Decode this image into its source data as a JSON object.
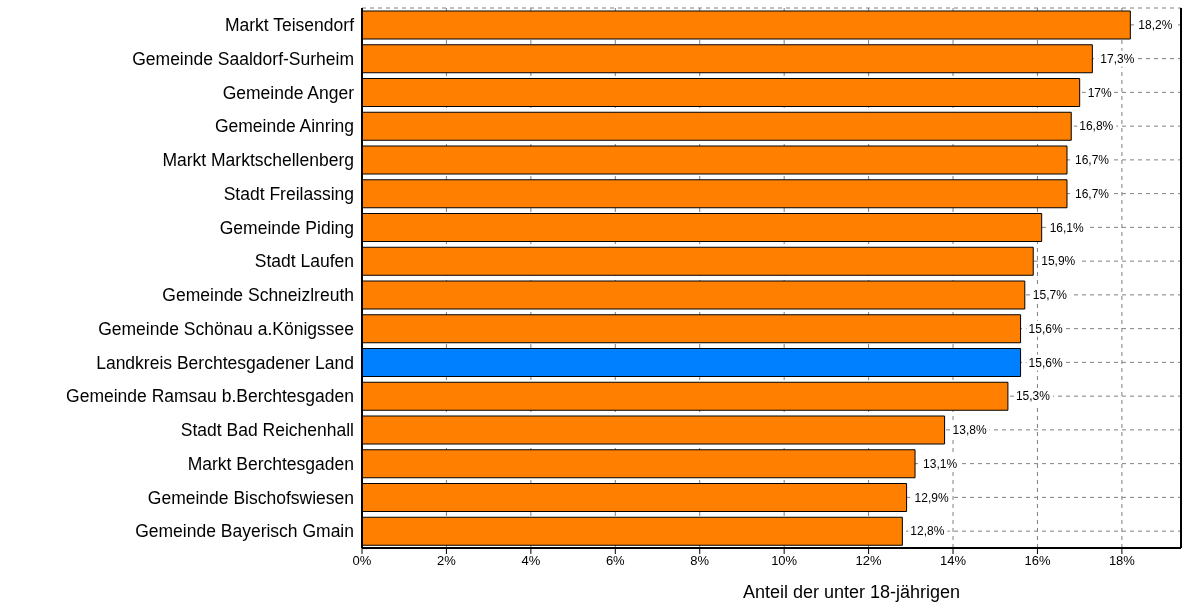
{
  "chart_data": {
    "type": "bar",
    "orientation": "horizontal",
    "xlabel": "Anteil der unter 18-jährigen",
    "categories": [
      "Markt Teisendorf",
      "Gemeinde Saaldorf-Surheim",
      "Gemeinde Anger",
      "Gemeinde Ainring",
      "Markt Marktschellenberg",
      "Stadt Freilassing",
      "Gemeinde Piding",
      "Stadt Laufen",
      "Gemeinde Schneizlreuth",
      "Gemeinde Schönau a.Königssee",
      "Landkreis Berchtesgadener Land",
      "Gemeinde Ramsau b.Berchtesgaden",
      "Stadt Bad Reichenhall",
      "Markt Berchtesgaden",
      "Gemeinde Bischofswiesen",
      "Gemeinde Bayerisch Gmain"
    ],
    "values": [
      18.2,
      17.3,
      17,
      16.8,
      16.7,
      16.7,
      16.1,
      15.9,
      15.7,
      15.6,
      15.6,
      15.3,
      13.8,
      13.1,
      12.9,
      12.8
    ],
    "value_labels": [
      "18,2%",
      "17,3%",
      "17%",
      "16,8%",
      "16,7%",
      "16,7%",
      "16,1%",
      "15,9%",
      "15,7%",
      "15,6%",
      "15,6%",
      "15,3%",
      "13,8%",
      "13,1%",
      "12,9%",
      "12,8%"
    ],
    "colors": [
      "#ff8000",
      "#ff8000",
      "#ff8000",
      "#ff8000",
      "#ff8000",
      "#ff8000",
      "#ff8000",
      "#ff8000",
      "#ff8000",
      "#ff8000",
      "#0080ff",
      "#ff8000",
      "#ff8000",
      "#ff8000",
      "#ff8000",
      "#ff8000"
    ],
    "xlim": [
      0,
      19.4
    ],
    "xticks": [
      {
        "value": 0,
        "label": "0%"
      },
      {
        "value": 2,
        "label": "2%"
      },
      {
        "value": 4,
        "label": "4%"
      },
      {
        "value": 6,
        "label": "6%"
      },
      {
        "value": 8,
        "label": "8%"
      },
      {
        "value": 10,
        "label": "10%"
      },
      {
        "value": 12,
        "label": "12%"
      },
      {
        "value": 14,
        "label": "14%"
      },
      {
        "value": 16,
        "label": "16%"
      },
      {
        "value": 18,
        "label": "18%"
      }
    ],
    "grid": true
  }
}
